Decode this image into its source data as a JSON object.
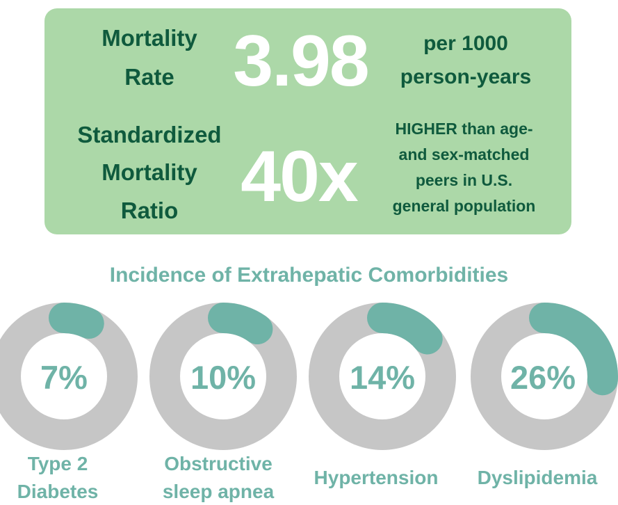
{
  "top_panel": {
    "mortality_rate": {
      "label_line1": "Mortality",
      "label_line2": "Rate",
      "value": "3.98",
      "unit_line1": "per 1000",
      "unit_line2": "person-years"
    },
    "smr": {
      "label_line1": "Standardized",
      "label_line2": "Mortality",
      "label_line3": "Ratio",
      "value": "40x",
      "desc_line1": "HIGHER than age-",
      "desc_line2": "and sex-matched",
      "desc_line3": "peers in U.S.",
      "desc_line4": "general population"
    }
  },
  "colors": {
    "panel_bg": "#acd8a8",
    "panel_text": "#0f5a3d",
    "accent": "#6fb3a7",
    "donut_track": "#c6c6c6",
    "donut_fill": "#6fb3a7"
  },
  "chart_data": {
    "type": "pie",
    "title": "Incidence of Extrahepatic Comorbidities",
    "unit": "%",
    "items": [
      {
        "label_lines": [
          "Type 2",
          "Diabetes"
        ],
        "value": 7,
        "display": "7%"
      },
      {
        "label_lines": [
          "Obstructive",
          "sleep apnea"
        ],
        "value": 10,
        "display": "10%"
      },
      {
        "label_lines": [
          "Hypertension"
        ],
        "value": 14,
        "display": "14%"
      },
      {
        "label_lines": [
          "Dyslipidemia"
        ],
        "value": 26,
        "display": "26%"
      }
    ]
  }
}
